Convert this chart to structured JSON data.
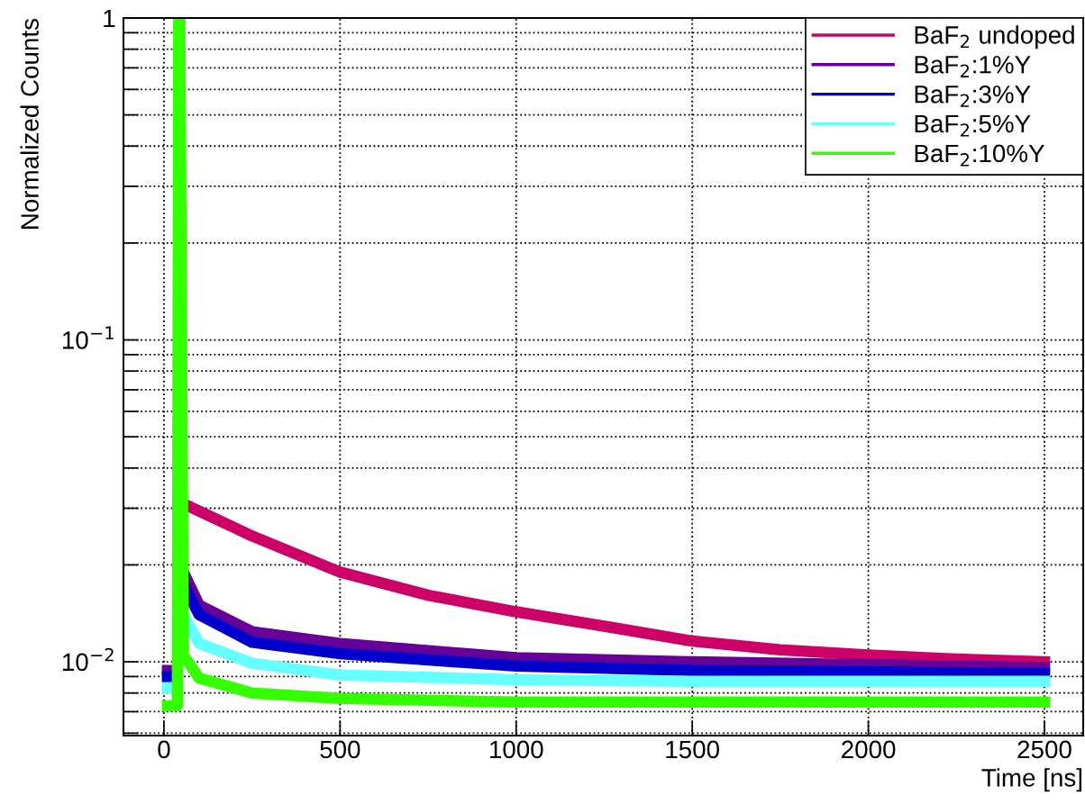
{
  "chart_data": {
    "type": "line",
    "xlabel": "Time [ns]",
    "ylabel": "Normalized Counts",
    "log": "y",
    "grid": true,
    "legend": "top right",
    "line_style": "solid",
    "xlim": [
      -115,
      2610
    ],
    "xticks": [
      0,
      500,
      1000,
      1500,
      2000,
      2500
    ],
    "ylim": [
      0.0059,
      1
    ],
    "yticks": [
      {
        "value": 0.006,
        "label": null
      },
      {
        "value": 0.007,
        "label": null
      },
      {
        "value": 0.008,
        "label": null
      },
      {
        "value": 0.009,
        "label": null
      },
      {
        "value": 0.01,
        "label": "10$^{−2}$"
      },
      {
        "value": 0.02,
        "label": null
      },
      {
        "value": 0.03,
        "label": null
      },
      {
        "value": 0.04,
        "label": null
      },
      {
        "value": 0.05,
        "label": null
      },
      {
        "value": 0.06,
        "label": null
      },
      {
        "value": 0.07,
        "label": null
      },
      {
        "value": 0.08,
        "label": null
      },
      {
        "value": 0.09,
        "label": null
      },
      {
        "value": 0.1,
        "label": "10$^{−1}$"
      },
      {
        "value": 0.2,
        "label": null
      },
      {
        "value": 0.3,
        "label": null
      },
      {
        "value": 0.4,
        "label": null
      },
      {
        "value": 0.5,
        "label": null
      },
      {
        "value": 0.6,
        "label": null
      },
      {
        "value": 0.7,
        "label": null
      },
      {
        "value": 0.8,
        "label": null
      },
      {
        "value": 0.9,
        "label": null
      },
      1
    ],
    "series": [
      {
        "name": "BaF$_{2}$ undoped",
        "color": "#cc0066",
        "x": [
          55,
          250,
          500,
          750,
          1000,
          1250,
          1500,
          1750,
          2000,
          2250,
          2500
        ],
        "values": [
          0.031,
          0.0246,
          0.019,
          0.0161,
          0.0143,
          0.0129,
          0.0116,
          0.0109,
          0.0105,
          0.0102,
          0.01
        ]
      },
      {
        "name": "BaF$_{2}$:1%Y",
        "color": "#660099",
        "x": [
          10,
          38,
          42,
          45,
          60,
          100,
          250,
          500,
          1000,
          1500,
          2000,
          2500
        ],
        "values": [
          0.0094,
          0.0094,
          null,
          null,
          0.0185,
          0.015,
          0.0124,
          0.0114,
          0.0103,
          0.01,
          0.0098,
          0.0096
        ]
      },
      {
        "name": "BaF$_{2}$:3%Y",
        "color": "#0000cc",
        "x": [
          10,
          38,
          42,
          45,
          60,
          100,
          250,
          500,
          1000,
          1500,
          2000,
          2500
        ],
        "values": [
          0.009,
          0.009,
          null,
          null,
          0.017,
          0.014,
          0.0115,
          0.0106,
          0.0097,
          0.0094,
          0.0093,
          0.0092
        ]
      },
      {
        "name": "BaF$_{2}$:5%Y",
        "color": "#66ffff",
        "x": [
          10,
          38,
          42,
          45,
          55,
          100,
          250,
          500,
          1000,
          1500,
          2000,
          2500
        ],
        "values": [
          0.0083,
          0.0083,
          null,
          null,
          0.014,
          0.0114,
          0.0099,
          0.0091,
          0.0088,
          0.0087,
          0.0087,
          0.0087
        ]
      },
      {
        "name": "BaF$_{2}$:10%Y",
        "color": "#33ff00",
        "x": [
          10,
          38,
          42,
          45,
          55,
          100,
          250,
          500,
          1000,
          1500,
          2000,
          2500
        ],
        "values": [
          0.0073,
          0.0073,
          1,
          1,
          0.0105,
          0.0089,
          0.008,
          0.0077,
          0.0075,
          0.0075,
          0.0075,
          0.0075
        ]
      }
    ]
  }
}
